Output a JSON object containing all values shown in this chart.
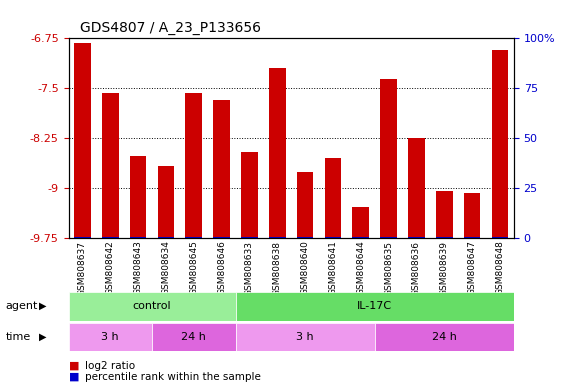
{
  "title": "GDS4807 / A_23_P133656",
  "samples": [
    "GSM808637",
    "GSM808642",
    "GSM808643",
    "GSM808634",
    "GSM808645",
    "GSM808646",
    "GSM808633",
    "GSM808638",
    "GSM808640",
    "GSM808641",
    "GSM808644",
    "GSM808635",
    "GSM808636",
    "GSM808639",
    "GSM808647",
    "GSM808648"
  ],
  "log2_values": [
    -6.82,
    -7.57,
    -8.52,
    -8.67,
    -7.57,
    -7.68,
    -8.45,
    -7.19,
    -8.75,
    -8.55,
    -9.28,
    -7.36,
    -8.25,
    -9.05,
    -9.08,
    -6.93
  ],
  "bar_color": "#cc0000",
  "percentile_color": "#0000cc",
  "yticks_left": [
    -6.75,
    -7.5,
    -8.25,
    -9.0,
    -9.75
  ],
  "yticks_left_labels": [
    "-6.75",
    "-7.5",
    "-8.25",
    "-9",
    "-9.75"
  ],
  "yticks_right": [
    0,
    25,
    50,
    75,
    100
  ],
  "yticks_right_labels": [
    "0",
    "25",
    "50",
    "75",
    "100%"
  ],
  "ylim": [
    -9.75,
    -6.75
  ],
  "agent_groups": [
    {
      "label": "control",
      "start": 0,
      "end": 6,
      "color": "#99ee99"
    },
    {
      "label": "IL-17C",
      "start": 6,
      "end": 16,
      "color": "#66dd66"
    }
  ],
  "time_groups": [
    {
      "label": "3 h",
      "start": 0,
      "end": 3,
      "color": "#ee99ee"
    },
    {
      "label": "24 h",
      "start": 3,
      "end": 6,
      "color": "#dd66dd"
    },
    {
      "label": "3 h",
      "start": 6,
      "end": 11,
      "color": "#ee99ee"
    },
    {
      "label": "24 h",
      "start": 11,
      "end": 16,
      "color": "#dd66dd"
    }
  ],
  "legend_items": [
    {
      "label": "log2 ratio",
      "color": "#cc0000"
    },
    {
      "label": "percentile rank within the sample",
      "color": "#0000cc"
    }
  ],
  "background_color": "#ffffff",
  "plot_bg": "#ffffff",
  "label_row_bg": "#cccccc",
  "agent_label": "agent",
  "time_label": "time"
}
